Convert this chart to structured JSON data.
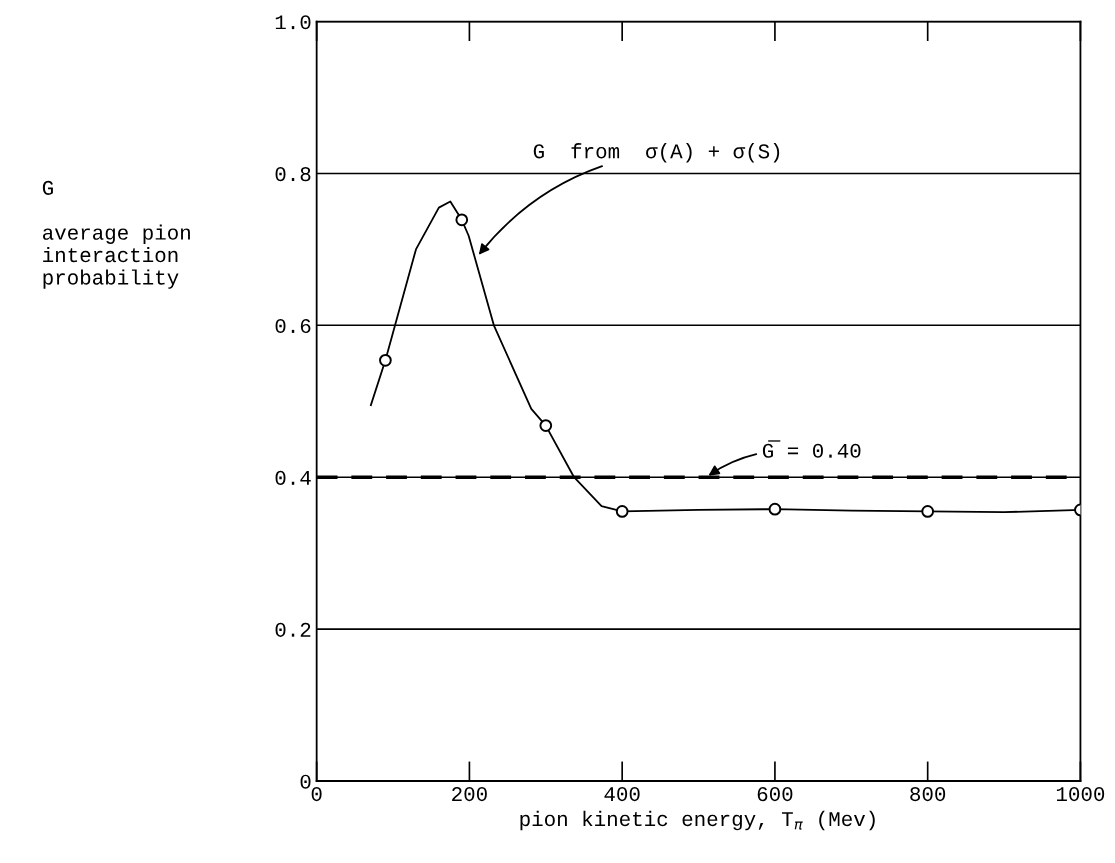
{
  "chart_data": {
    "type": "scatter",
    "xlabel": "pion kinetic energy, T$_{π}$ (Mev)",
    "ylabel": "G\n\naverage pion\ninteraction\nprobability",
    "xlim": [
      0,
      1000
    ],
    "ylim": [
      0,
      1.0
    ],
    "xticks": [
      {
        "value": 0,
        "label": "0"
      },
      200,
      400,
      600,
      800,
      1000
    ],
    "yticks": [
      {
        "value": 0,
        "label": "0"
      },
      0.2,
      0.4,
      0.6,
      0.8,
      {
        "value": 1.0,
        "label": "1.0"
      }
    ],
    "grid": "y",
    "legend": false,
    "series": [
      {
        "type": "line",
        "color": "#000000",
        "marker": "none",
        "line_style": "solid",
        "x": [
          71,
          90,
          130,
          160,
          175,
          190,
          199,
          232,
          281,
          300,
          337,
          373,
          400,
          500,
          600,
          700,
          800,
          900,
          1000
        ],
        "values": [
          0.495,
          0.554,
          0.7,
          0.755,
          0.763,
          0.739,
          0.718,
          0.6,
          0.49,
          0.468,
          0.4,
          0.362,
          0.355,
          0.357,
          0.358,
          0.356,
          0.355,
          0.354,
          0.357
        ]
      },
      {
        "color": "#000000",
        "marker": "circle",
        "x": [
          90,
          190,
          300,
          400,
          600,
          800,
          1000
        ],
        "values": [
          0.554,
          0.739,
          0.468,
          0.355,
          0.358,
          0.355,
          0.357
        ]
      }
    ],
    "ref_lines": [
      {
        "axis": "y",
        "value": 0.4,
        "label": "G̅ = 0.40",
        "line_style": "dashed",
        "color": "#000000"
      }
    ],
    "annotations": [
      {
        "text": "G  from  σ(A) + σ(S)",
        "x": 210,
        "y": 0.69
      }
    ]
  }
}
